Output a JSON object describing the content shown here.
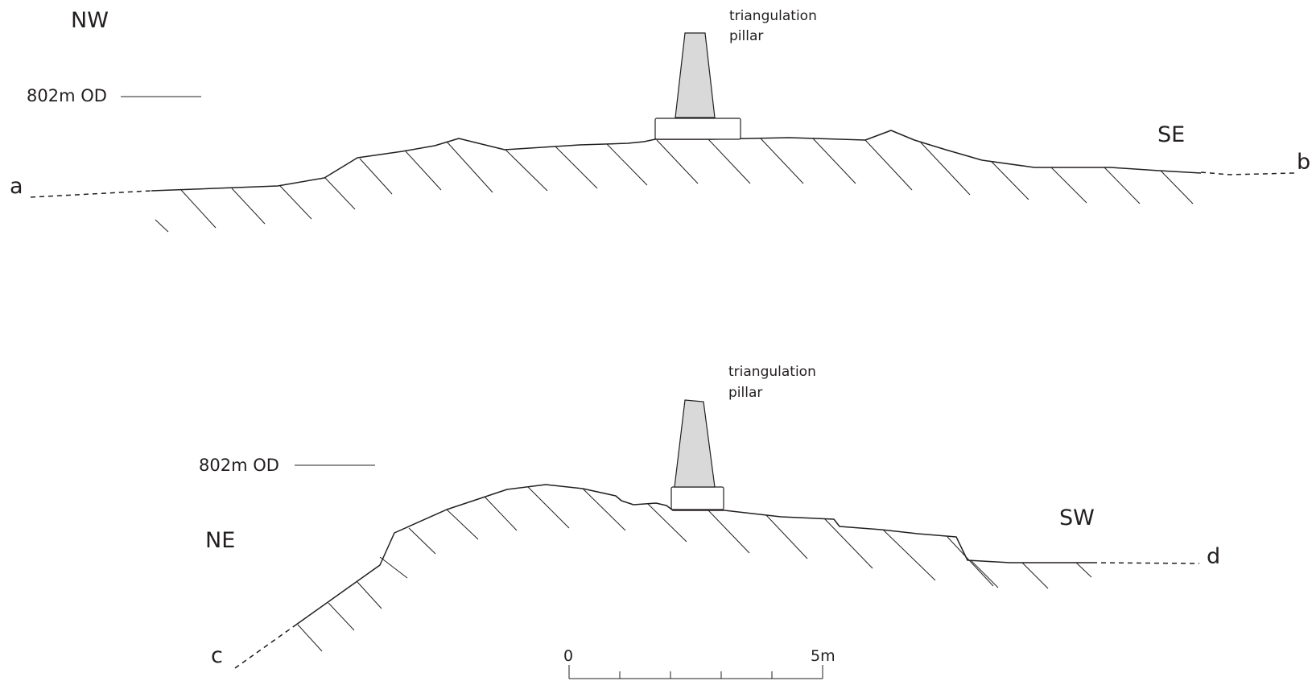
{
  "profile_ab": {
    "direction_left": "NW",
    "direction_right": "SE",
    "point_start": "a",
    "point_end": "b",
    "datum_label": "802m OD",
    "pillar_label_line1": "triangulation",
    "pillar_label_line2": "pillar"
  },
  "profile_cd": {
    "direction_left": "NE",
    "direction_right": "SW",
    "point_start": "c",
    "point_end": "d",
    "datum_label": "802m OD",
    "pillar_label_line1": "triangulation",
    "pillar_label_line2": "pillar"
  },
  "scale_bar": {
    "start_label": "0",
    "end_label": "5m",
    "divisions": 5
  }
}
